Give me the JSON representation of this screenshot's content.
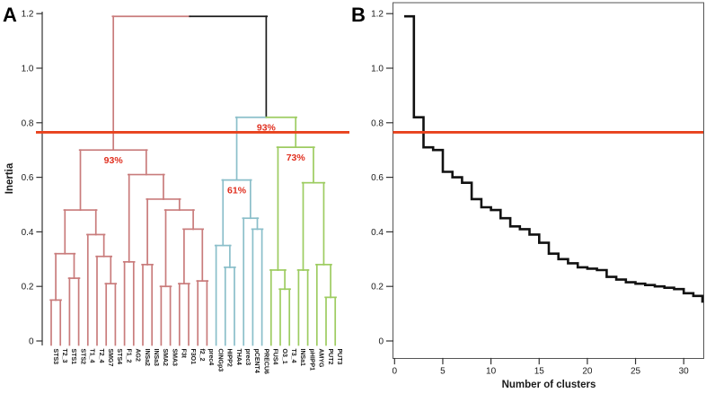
{
  "panels": {
    "a": "A",
    "b": "B"
  },
  "colors": {
    "red": "#c97c7c",
    "blue": "#8bbfca",
    "green": "#9dcc61",
    "black": "#1a1a1a",
    "threshold": "#e8411c",
    "annotation": "#e02f1f",
    "curve": "#111111",
    "axis": "#333333"
  },
  "chart_data": [
    {
      "type": "dendrogram",
      "panel": "A",
      "ylabel": "Inertia",
      "ylim": [
        0,
        1.2
      ],
      "yticks": [
        1.2,
        1.0,
        0.8,
        0.6,
        0.4,
        0.2,
        0
      ],
      "ytick_labels": [
        "1.2",
        "1.0",
        "0.8",
        "0.6",
        "0.4",
        "0.2",
        "0"
      ],
      "grid": false,
      "threshold_line": 0.765,
      "leaf_order": [
        "STS3",
        "T2_3",
        "STS1",
        "STS2",
        "T1_4",
        "T2_4",
        "SMG7",
        "STS4",
        "F1_2",
        "AG2",
        "INSa2",
        "INSa3",
        "SMA2",
        "SMA3",
        "F3t",
        "F3O1",
        "f2_2",
        "prec4",
        "CINGp3",
        "HIPP2",
        "THA4",
        "prec3",
        "pCENT4",
        "PRECU6",
        "FUS4",
        "O3_1",
        "T3_4",
        "INSa1",
        "pHIPP1",
        "AMYG",
        "PUT2",
        "PUT3"
      ],
      "clusters": [
        {
          "color_key": "red",
          "agreement_label": "93%",
          "members": [
            "STS3",
            "T2_3",
            "STS1",
            "STS2",
            "T1_4",
            "T2_4",
            "SMG7",
            "STS4",
            "F1_2",
            "AG2",
            "INSa2",
            "INSa3",
            "SMA2",
            "SMA3",
            "F3t",
            "F3O1",
            "f2_2",
            "prec4"
          ]
        },
        {
          "color_key": "blue",
          "agreement_label": "61%",
          "members": [
            "CINGp3",
            "HIPP2",
            "THA4",
            "prec3",
            "pCENT4",
            "PRECU6"
          ]
        },
        {
          "color_key": "green",
          "agreement_label": "73%",
          "members": [
            "FUS4",
            "O3_1",
            "T3_4",
            "INSa1",
            "pHIPP1",
            "AMYG",
            "PUT2",
            "PUT3"
          ]
        }
      ],
      "tree": {
        "h": 1.19,
        "c": "black",
        "ch": [
          {
            "h": 0.7,
            "c": "red",
            "p": "93%",
            "ch": [
              {
                "h": 0.48,
                "c": "red",
                "ch": [
                  {
                    "h": 0.32,
                    "c": "red",
                    "ch": [
                      {
                        "h": 0.15,
                        "c": "red",
                        "ch": [
                          {
                            "l": "STS3"
                          },
                          {
                            "l": "T2_3"
                          }
                        ]
                      },
                      {
                        "h": 0.23,
                        "c": "red",
                        "ch": [
                          {
                            "l": "STS1"
                          },
                          {
                            "l": "STS2"
                          }
                        ]
                      }
                    ]
                  },
                  {
                    "h": 0.39,
                    "c": "red",
                    "ch": [
                      {
                        "l": "T1_4"
                      },
                      {
                        "h": 0.31,
                        "c": "red",
                        "ch": [
                          {
                            "l": "T2_4"
                          },
                          {
                            "h": 0.21,
                            "c": "red",
                            "ch": [
                              {
                                "l": "SMG7"
                              },
                              {
                                "l": "STS4"
                              }
                            ]
                          }
                        ]
                      }
                    ]
                  }
                ]
              },
              {
                "h": 0.61,
                "c": "red",
                "ch": [
                  {
                    "h": 0.29,
                    "c": "red",
                    "ch": [
                      {
                        "l": "F1_2"
                      },
                      {
                        "l": "AG2"
                      }
                    ]
                  },
                  {
                    "h": 0.52,
                    "c": "red",
                    "ch": [
                      {
                        "h": 0.28,
                        "c": "red",
                        "ch": [
                          {
                            "l": "INSa2"
                          },
                          {
                            "l": "INSa3"
                          }
                        ]
                      },
                      {
                        "h": 0.48,
                        "c": "red",
                        "ch": [
                          {
                            "h": 0.2,
                            "c": "red",
                            "ch": [
                              {
                                "l": "SMA2"
                              },
                              {
                                "l": "SMA3"
                              }
                            ]
                          },
                          {
                            "h": 0.41,
                            "c": "red",
                            "ch": [
                              {
                                "h": 0.21,
                                "c": "red",
                                "ch": [
                                  {
                                    "l": "F3t"
                                  },
                                  {
                                    "l": "F3O1"
                                  }
                                ]
                              },
                              {
                                "h": 0.22,
                                "c": "red",
                                "ch": [
                                  {
                                    "l": "f2_2"
                                  },
                                  {
                                    "l": "prec4"
                                  }
                                ]
                              }
                            ]
                          }
                        ]
                      }
                    ]
                  }
                ]
              }
            ]
          },
          {
            "h": 0.82,
            "c": "black",
            "p": "93%",
            "ch": [
              {
                "h": 0.59,
                "c": "blue",
                "p": "61%",
                "ch": [
                  {
                    "h": 0.35,
                    "c": "blue",
                    "ch": [
                      {
                        "l": "CINGp3"
                      },
                      {
                        "h": 0.27,
                        "c": "blue",
                        "ch": [
                          {
                            "l": "HIPP2"
                          },
                          {
                            "l": "THA4"
                          }
                        ]
                      }
                    ]
                  },
                  {
                    "h": 0.45,
                    "c": "blue",
                    "ch": [
                      {
                        "l": "prec3"
                      },
                      {
                        "h": 0.41,
                        "c": "blue",
                        "ch": [
                          {
                            "l": "pCENT4"
                          },
                          {
                            "l": "PRECU6"
                          }
                        ]
                      }
                    ]
                  }
                ]
              },
              {
                "h": 0.71,
                "c": "green",
                "p": "73%",
                "ch": [
                  {
                    "h": 0.26,
                    "c": "green",
                    "ch": [
                      {
                        "l": "FUS4"
                      },
                      {
                        "h": 0.19,
                        "c": "green",
                        "ch": [
                          {
                            "l": "O3_1"
                          },
                          {
                            "l": "T3_4"
                          }
                        ]
                      }
                    ]
                  },
                  {
                    "h": 0.58,
                    "c": "green",
                    "ch": [
                      {
                        "h": 0.26,
                        "c": "green",
                        "ch": [
                          {
                            "l": "INSa1"
                          },
                          {
                            "l": "pHIPP1"
                          }
                        ]
                      },
                      {
                        "h": 0.28,
                        "c": "green",
                        "ch": [
                          {
                            "l": "AMYG"
                          },
                          {
                            "h": 0.16,
                            "c": "green",
                            "ch": [
                              {
                                "l": "PUT2"
                              },
                              {
                                "l": "PUT3"
                              }
                            ]
                          }
                        ]
                      }
                    ]
                  }
                ]
              }
            ]
          }
        ]
      }
    },
    {
      "type": "step",
      "panel": "B",
      "xlabel": "Number of clusters",
      "ylabel": "Inertia",
      "xlim": [
        0,
        32
      ],
      "ylim": [
        0,
        1.2
      ],
      "xticks": [
        0,
        5,
        10,
        15,
        20,
        25,
        30
      ],
      "xtick_labels": [
        "0",
        "5",
        "10",
        "15",
        "20",
        "25",
        "30"
      ],
      "yticks": [
        1.2,
        1.0,
        0.8,
        0.6,
        0.4,
        0.2,
        0
      ],
      "ytick_labels": [
        "1.2",
        "1.0",
        "0.8",
        "0.6",
        "0.4",
        "0.2",
        "0"
      ],
      "grid": false,
      "threshold_line": 0.765,
      "x": [
        1,
        2,
        3,
        4,
        5,
        6,
        7,
        8,
        9,
        10,
        11,
        12,
        13,
        14,
        15,
        16,
        17,
        18,
        19,
        20,
        21,
        22,
        23,
        24,
        25,
        26,
        27,
        28,
        29,
        30,
        31
      ],
      "y": [
        1.19,
        0.82,
        0.71,
        0.7,
        0.62,
        0.6,
        0.58,
        0.52,
        0.49,
        0.48,
        0.45,
        0.42,
        0.41,
        0.39,
        0.36,
        0.32,
        0.3,
        0.285,
        0.27,
        0.265,
        0.26,
        0.235,
        0.225,
        0.215,
        0.21,
        0.205,
        0.2,
        0.195,
        0.19,
        0.175,
        0.165
      ],
      "final_drop_to": 0.14
    }
  ]
}
